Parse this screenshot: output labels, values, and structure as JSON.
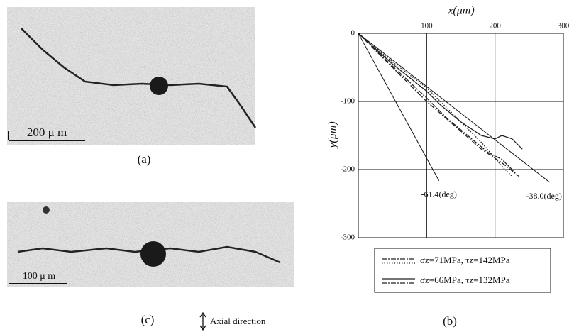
{
  "panels": {
    "a": {
      "label": "(a)",
      "scale": "200 μ m"
    },
    "c": {
      "label": "(c)",
      "scale": "100 μ m",
      "axial": "Axial direction"
    },
    "b": {
      "label": "(b)"
    }
  },
  "chart_data": {
    "type": "line",
    "xlabel": "x(μm)",
    "ylabel": "y(μm)",
    "xlim": [
      0,
      300
    ],
    "ylim": [
      -300,
      0
    ],
    "xticks": [
      100,
      200,
      300
    ],
    "yticks": [
      0,
      -100,
      -200,
      -300
    ],
    "grid": true,
    "series": [
      {
        "name": "σz=71MPa, τz=142MPa",
        "color": "#222222",
        "curves": [
          {
            "style": "dashdot",
            "x": [
              0,
              50,
              100,
              140,
              180,
              210,
              235
            ],
            "y": [
              0,
              -50,
              -100,
              -135,
              -170,
              -190,
              -210
            ]
          },
          {
            "style": "dotted",
            "x": [
              0,
              50,
              100,
              140,
              180,
              210,
              225
            ],
            "y": [
              0,
              -42,
              -80,
              -120,
              -160,
              -195,
              -210
            ]
          }
        ]
      },
      {
        "name": "σz=66MPa, τz=132MPa",
        "color": "#222222",
        "curves": [
          {
            "style": "solid",
            "x": [
              0,
              50,
              100,
              120,
              150,
              180,
              200,
              210,
              225,
              240
            ],
            "y": [
              0,
              -45,
              -85,
              -105,
              -130,
              -150,
              -155,
              -150,
              -155,
              -170
            ]
          },
          {
            "style": "dashdot",
            "x": [
              0,
              50,
              100,
              130,
              160,
              190,
              210,
              230
            ],
            "y": [
              0,
              -48,
              -95,
              -125,
              -150,
              -175,
              -185,
              -205
            ]
          }
        ]
      }
    ],
    "reference_lines": [
      {
        "angle": -61.4,
        "label": "-61.4(deg)",
        "x_end": 118
      },
      {
        "angle": -38,
        "label": "-38.0(deg)",
        "x_end": 280
      }
    ]
  }
}
